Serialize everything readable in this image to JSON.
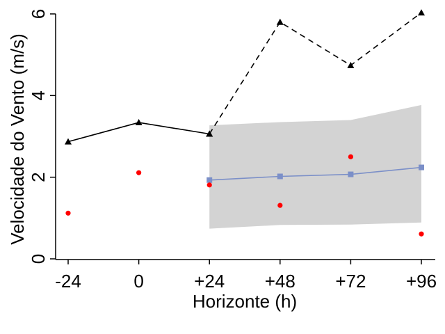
{
  "chart_data": {
    "type": "line",
    "xlabel": "Horizonte (h)",
    "ylabel": "Velocidade do Vento (m/s)",
    "categories": [
      "-24",
      "0",
      "+24",
      "+48",
      "+72",
      "+96"
    ],
    "x": [
      -24,
      0,
      24,
      48,
      72,
      96
    ],
    "ylim": [
      0,
      6
    ],
    "yticks": [
      0,
      2,
      4,
      6
    ],
    "grid": false,
    "series": [
      {
        "kind": "line-triangle",
        "style": "solid",
        "color": "#000000",
        "x": [
          -24,
          0,
          24
        ],
        "values": [
          2.87,
          3.34,
          3.06
        ]
      },
      {
        "kind": "line-triangle",
        "style": "dashed",
        "color": "#000000",
        "x": [
          24,
          48,
          72,
          96
        ],
        "values": [
          3.06,
          5.8,
          4.74,
          6.03
        ]
      },
      {
        "kind": "line-square",
        "style": "solid",
        "color": "#7b8fc8",
        "x": [
          24,
          48,
          72,
          96
        ],
        "values": [
          1.93,
          2.02,
          2.07,
          2.24
        ]
      },
      {
        "kind": "points",
        "color": "#ff0000",
        "x": [
          -24,
          0,
          24,
          48,
          72,
          96
        ],
        "values": [
          1.12,
          2.11,
          1.81,
          1.31,
          2.5,
          0.61
        ]
      }
    ],
    "band": {
      "color": "#d3d3d3",
      "x": [
        24,
        48,
        72,
        96
      ],
      "lower": [
        0.74,
        0.83,
        0.84,
        0.89
      ],
      "upper": [
        3.27,
        3.35,
        3.4,
        3.77
      ]
    }
  }
}
